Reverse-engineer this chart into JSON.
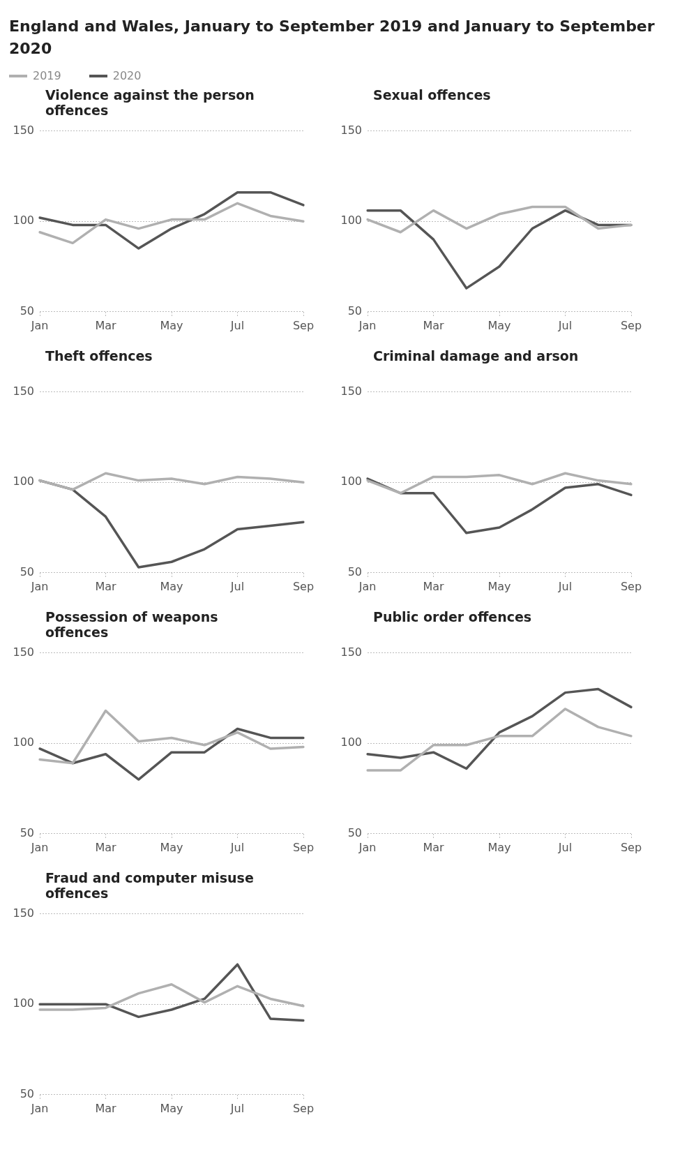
{
  "chart_data": [
    {
      "type": "other",
      "title": "England and Wales, January to September 2019 and January to September 2020"
    },
    {
      "type": "line",
      "title": "Violence against the person offences",
      "categories": [
        "Jan",
        null,
        "Mar",
        null,
        "May",
        null,
        "Jul",
        null,
        "Sep"
      ],
      "ylim": [
        50,
        150
      ],
      "yticks": [
        50,
        100,
        150
      ],
      "grid": "y",
      "legend": "top left",
      "marker": "none",
      "line_style": "solid",
      "series": [
        {
          "name": "2019",
          "color": "#b0b0b0",
          "values": [
            94,
            88,
            101,
            96,
            101,
            101,
            110,
            103,
            100
          ]
        },
        {
          "name": "2020",
          "color": "#555555",
          "values": [
            102,
            98,
            98,
            85,
            96,
            104,
            116,
            116,
            109
          ]
        }
      ]
    },
    {
      "type": "line",
      "title": "Sexual offences",
      "categories": [
        "Jan",
        null,
        "Mar",
        null,
        "May",
        null,
        "Jul",
        null,
        "Sep"
      ],
      "ylim": [
        50,
        150
      ],
      "yticks": [
        50,
        100,
        150
      ],
      "grid": "y",
      "marker": "none",
      "line_style": "solid",
      "series": [
        {
          "color": "#b0b0b0",
          "values": [
            101,
            94,
            106,
            96,
            104,
            108,
            108,
            96,
            98
          ]
        },
        {
          "color": "#555555",
          "values": [
            106,
            106,
            90,
            63,
            75,
            96,
            106,
            98,
            98
          ]
        }
      ]
    },
    {
      "type": "line",
      "title": "Theft offences",
      "categories": [
        "Jan",
        null,
        "Mar",
        null,
        "May",
        null,
        "Jul",
        null,
        "Sep"
      ],
      "ylim": [
        50,
        150
      ],
      "yticks": [
        50,
        100,
        150
      ],
      "grid": "y",
      "marker": "none",
      "line_style": "solid",
      "series": [
        {
          "color": "#b0b0b0",
          "values": [
            101,
            96,
            105,
            101,
            102,
            99,
            103,
            102,
            100
          ]
        },
        {
          "color": "#555555",
          "values": [
            101,
            96,
            81,
            53,
            56,
            63,
            74,
            76,
            78
          ]
        }
      ]
    },
    {
      "type": "line",
      "title": "Criminal damage and arson",
      "categories": [
        "Jan",
        null,
        "Mar",
        null,
        "May",
        null,
        "Jul",
        null,
        "Sep"
      ],
      "ylim": [
        50,
        150
      ],
      "yticks": [
        50,
        100,
        150
      ],
      "grid": "y",
      "marker": "none",
      "line_style": "solid",
      "series": [
        {
          "color": "#b0b0b0",
          "values": [
            101,
            94,
            103,
            103,
            104,
            99,
            105,
            101,
            99
          ]
        },
        {
          "color": "#555555",
          "values": [
            102,
            94,
            94,
            72,
            75,
            85,
            97,
            99,
            93
          ]
        }
      ]
    },
    {
      "type": "line",
      "title": "Possession of weapons offences",
      "categories": [
        "Jan",
        null,
        "Mar",
        null,
        "May",
        null,
        "Jul",
        null,
        "Sep"
      ],
      "ylim": [
        50,
        150
      ],
      "yticks": [
        50,
        100,
        150
      ],
      "grid": "y",
      "marker": "none",
      "line_style": "solid",
      "series": [
        {
          "color": "#b0b0b0",
          "values": [
            91,
            89,
            118,
            101,
            103,
            99,
            106,
            97,
            98
          ]
        },
        {
          "color": "#555555",
          "values": [
            97,
            89,
            94,
            80,
            95,
            95,
            108,
            103,
            103
          ]
        }
      ]
    },
    {
      "type": "line",
      "title": "Public order offences",
      "categories": [
        "Jan",
        null,
        "Mar",
        null,
        "May",
        null,
        "Jul",
        null,
        "Sep"
      ],
      "ylim": [
        50,
        150
      ],
      "yticks": [
        50,
        100,
        150
      ],
      "grid": "y",
      "marker": "none",
      "line_style": "solid",
      "series": [
        {
          "color": "#b0b0b0",
          "values": [
            85,
            85,
            99,
            99,
            104,
            104,
            119,
            109,
            104
          ]
        },
        {
          "color": "#555555",
          "values": [
            94,
            92,
            95,
            86,
            106,
            115,
            128,
            130,
            120
          ]
        }
      ]
    },
    {
      "type": "line",
      "title": "Fraud and computer misuse offences",
      "categories": [
        "Jan",
        null,
        "Mar",
        null,
        "May",
        null,
        "Jul",
        null,
        "Sep"
      ],
      "ylim": [
        50,
        150
      ],
      "yticks": [
        50,
        100,
        150
      ],
      "grid": "y",
      "marker": "none",
      "line_style": "solid",
      "series": [
        {
          "color": "#b0b0b0",
          "values": [
            97,
            97,
            98,
            106,
            111,
            101,
            110,
            103,
            99
          ]
        },
        {
          "color": "#555555",
          "values": [
            100,
            100,
            100,
            93,
            97,
            103,
            122,
            92,
            91
          ]
        }
      ]
    }
  ]
}
